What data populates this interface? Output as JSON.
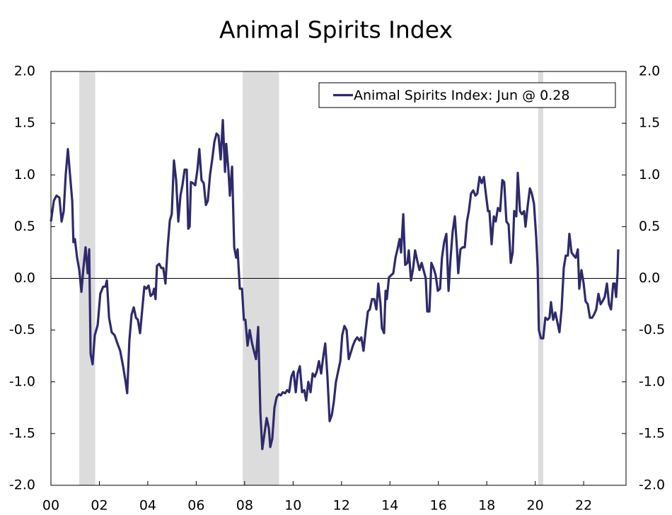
{
  "chart_data": {
    "type": "line",
    "title": "Animal Spirits Index",
    "x": [
      2000.0,
      2000.12,
      2000.23,
      2000.35,
      2000.44,
      2000.53,
      2000.61,
      2000.7,
      2000.79,
      2000.88,
      2000.93,
      2000.99,
      2001.08,
      2001.17,
      2001.26,
      2001.34,
      2001.43,
      2001.52,
      2001.58,
      2001.64,
      2001.72,
      2001.81,
      2001.93,
      2002.04,
      2002.16,
      2002.25,
      2002.31,
      2002.4,
      2002.51,
      2002.63,
      2002.75,
      2002.86,
      2002.98,
      2003.07,
      2003.15,
      2003.24,
      2003.33,
      2003.42,
      2003.51,
      2003.59,
      2003.68,
      2003.77,
      2003.86,
      2003.94,
      2004.03,
      2004.12,
      2004.21,
      2004.26,
      2004.32,
      2004.38,
      2004.47,
      2004.56,
      2004.64,
      2004.73,
      2004.82,
      2004.91,
      2004.99,
      2005.08,
      2005.17,
      2005.26,
      2005.35,
      2005.43,
      2005.52,
      2005.61,
      2005.67,
      2005.73,
      2005.78,
      2005.87,
      2005.96,
      2006.05,
      2006.13,
      2006.22,
      2006.31,
      2006.4,
      2006.48,
      2006.57,
      2006.66,
      2006.75,
      2006.84,
      2006.92,
      2007.01,
      2007.1,
      2007.19,
      2007.24,
      2007.33,
      2007.39,
      2007.48,
      2007.57,
      2007.65,
      2007.71,
      2007.8,
      2007.89,
      2007.97,
      2008.03,
      2008.12,
      2008.21,
      2008.3,
      2008.38,
      2008.47,
      2008.56,
      2008.65,
      2008.73,
      2008.82,
      2008.91,
      2009.0,
      2009.06,
      2009.14,
      2009.23,
      2009.32,
      2009.41,
      2009.49,
      2009.58,
      2009.67,
      2009.76,
      2009.84,
      2009.93,
      2010.02,
      2010.11,
      2010.19,
      2010.28,
      2010.37,
      2010.46,
      2010.54,
      2010.63,
      2010.72,
      2010.81,
      2010.9,
      2010.98,
      2011.07,
      2011.16,
      2011.25,
      2011.33,
      2011.42,
      2011.51,
      2011.6,
      2011.68,
      2011.77,
      2011.86,
      2011.95,
      2012.03,
      2012.12,
      2012.21,
      2012.3,
      2012.38,
      2012.47,
      2012.56,
      2012.65,
      2012.74,
      2012.82,
      2012.91,
      2013.0,
      2013.09,
      2013.17,
      2013.26,
      2013.35,
      2013.44,
      2013.52,
      2013.61,
      2013.67,
      2013.76,
      2013.82,
      2013.87,
      2013.96,
      2014.05,
      2014.14,
      2014.23,
      2014.31,
      2014.4,
      2014.46,
      2014.55,
      2014.63,
      2014.72,
      2014.78,
      2014.87,
      2014.96,
      2015.04,
      2015.13,
      2015.22,
      2015.31,
      2015.39,
      2015.48,
      2015.54,
      2015.63,
      2015.71,
      2015.8,
      2015.89,
      2015.98,
      2016.07,
      2016.15,
      2016.24,
      2016.33,
      2016.42,
      2016.5,
      2016.59,
      2016.68,
      2016.77,
      2016.82,
      2016.91,
      2017.0,
      2017.09,
      2017.18,
      2017.26,
      2017.35,
      2017.44,
      2017.53,
      2017.61,
      2017.7,
      2017.79,
      2017.88,
      2017.96,
      2018.05,
      2018.11,
      2018.2,
      2018.29,
      2018.37,
      2018.46,
      2018.55,
      2018.64,
      2018.72,
      2018.81,
      2018.9,
      2018.99,
      2019.07,
      2019.13,
      2019.22,
      2019.28,
      2019.37,
      2019.45,
      2019.54,
      2019.6,
      2019.69,
      2019.78,
      2019.86,
      2019.95,
      2020.04,
      2020.1,
      2020.15,
      2020.24,
      2020.33,
      2020.42,
      2020.51,
      2020.59,
      2020.65,
      2020.74,
      2020.83,
      2020.91,
      2021.0,
      2021.09,
      2021.18,
      2021.26,
      2021.35,
      2021.41,
      2021.5,
      2021.59,
      2021.67,
      2021.76,
      2021.82,
      2021.91,
      2022.0,
      2022.08,
      2022.17,
      2022.26,
      2022.35,
      2022.43,
      2022.52,
      2022.61,
      2022.7,
      2022.78,
      2022.87,
      2022.96,
      2023.05,
      2023.13,
      2023.22,
      2023.28,
      2023.34,
      2023.4,
      2023.43
    ],
    "series": [
      {
        "name": "Animal Spirits Index: Jun @ 0.28",
        "color": "#2e2a6b",
        "values": [
          0.55,
          0.75,
          0.8,
          0.78,
          0.55,
          0.65,
          1.0,
          1.25,
          1.0,
          0.75,
          0.35,
          0.38,
          0.2,
          0.08,
          -0.13,
          0.1,
          0.3,
          0.05,
          0.28,
          -0.73,
          -0.83,
          -0.55,
          -0.45,
          -0.15,
          -0.08,
          -0.08,
          -0.02,
          -0.38,
          -0.52,
          -0.55,
          -0.63,
          -0.7,
          -0.85,
          -0.98,
          -1.11,
          -0.6,
          -0.35,
          -0.28,
          -0.38,
          -0.4,
          -0.53,
          -0.3,
          -0.08,
          -0.1,
          -0.07,
          -0.17,
          -0.15,
          -0.1,
          -0.2,
          0.12,
          0.14,
          0.1,
          0.1,
          -0.05,
          0.3,
          0.56,
          0.62,
          1.14,
          0.95,
          0.55,
          0.8,
          0.9,
          1.05,
          1.05,
          0.48,
          0.5,
          0.93,
          0.92,
          0.9,
          1.05,
          1.25,
          0.95,
          0.92,
          0.71,
          0.75,
          1.0,
          1.15,
          1.32,
          1.4,
          1.38,
          1.15,
          1.53,
          1.03,
          1.3,
          1.05,
          0.8,
          1.08,
          0.3,
          0.2,
          0.28,
          -0.1,
          -0.1,
          -0.4,
          -0.4,
          -0.65,
          -0.5,
          -0.62,
          -0.7,
          -0.78,
          -0.47,
          -1.3,
          -1.65,
          -1.5,
          -1.35,
          -1.45,
          -1.63,
          -1.55,
          -1.25,
          -1.15,
          -1.12,
          -1.13,
          -1.1,
          -1.11,
          -1.08,
          -1.1,
          -0.95,
          -0.9,
          -1.1,
          -0.92,
          -0.85,
          -1.1,
          -1.08,
          -1.18,
          -1.0,
          -1.1,
          -0.92,
          -0.95,
          -0.9,
          -0.8,
          -0.92,
          -0.75,
          -0.63,
          -0.95,
          -1.38,
          -1.32,
          -1.2,
          -1.0,
          -0.9,
          -0.8,
          -0.55,
          -0.46,
          -0.5,
          -0.78,
          -0.72,
          -0.65,
          -0.6,
          -0.57,
          -0.6,
          -0.57,
          -0.7,
          -0.5,
          -0.32,
          -0.3,
          -0.2,
          -0.2,
          -0.3,
          -0.05,
          -0.25,
          -0.48,
          -0.53,
          -0.12,
          -0.2,
          0.01,
          0.03,
          0.05,
          0.2,
          0.28,
          0.38,
          0.25,
          0.62,
          0.13,
          0.15,
          0.27,
          -0.02,
          0.1,
          0.27,
          0.17,
          0.08,
          0.15,
          0.08,
          0,
          -0.32,
          -0.32,
          0.15,
          0.1,
          0.03,
          -0.12,
          -0.1,
          0.2,
          0.35,
          0.43,
          -0.12,
          0.18,
          0.45,
          0.6,
          0.28,
          0.05,
          0.28,
          0.3,
          0.3,
          0.55,
          0.65,
          0.82,
          0.85,
          0.8,
          0.82,
          0.98,
          0.92,
          0.98,
          0.82,
          0.65,
          0.65,
          0.33,
          0.6,
          0.55,
          0.68,
          0.65,
          0.95,
          0.93,
          0.55,
          0.52,
          0.15,
          0.25,
          0.65,
          0.6,
          1.02,
          0.65,
          0.62,
          0.65,
          0.5,
          0.7,
          0.87,
          0.82,
          0.72,
          0.4,
          0.1,
          -0.5,
          -0.58,
          -0.58,
          -0.38,
          -0.4,
          -0.38,
          -0.23,
          -0.4,
          -0.33,
          -0.42,
          -0.52,
          -0.3,
          0.1,
          0.22,
          0.22,
          0.43,
          0.25,
          0.22,
          0.2,
          0.28,
          -0.1,
          0.08,
          -0.05,
          -0.22,
          -0.25,
          -0.38,
          -0.38,
          -0.35,
          -0.3,
          -0.15,
          -0.25,
          -0.22,
          -0.18,
          -0.05,
          -0.25,
          -0.3,
          -0.05,
          -0.05,
          -0.18,
          0.05,
          0.28
        ]
      }
    ],
    "recessions": [
      [
        2001.17,
        2001.83
      ],
      [
        2007.92,
        2009.42
      ],
      [
        2020.12,
        2020.33
      ]
    ],
    "recession_color": "#dcdcdc",
    "xlim": [
      2000,
      2023.75
    ],
    "xticks": [
      {
        "value": 2000,
        "label": "00"
      },
      {
        "value": 2002,
        "label": "02"
      },
      {
        "value": 2004,
        "label": "04"
      },
      {
        "value": 2006,
        "label": "06"
      },
      {
        "value": 2008,
        "label": "08"
      },
      {
        "value": 2010,
        "label": "10"
      },
      {
        "value": 2012,
        "label": "12"
      },
      {
        "value": 2014,
        "label": "14"
      },
      {
        "value": 2016,
        "label": "16"
      },
      {
        "value": 2018,
        "label": "18"
      },
      {
        "value": 2020,
        "label": "20"
      },
      {
        "value": 2022,
        "label": "22"
      }
    ],
    "ylim": [
      -2,
      2
    ],
    "yticks": [
      {
        "value": -2,
        "label": "-2.0"
      },
      -1.5,
      {
        "value": -1,
        "label": "-1.0"
      },
      -0.5,
      {
        "value": 0,
        "label": "0.0"
      },
      0.5,
      {
        "value": 1,
        "label": "1.0"
      },
      1.5,
      {
        "value": 2,
        "label": "2.0"
      }
    ],
    "y2lim": [
      -2,
      2
    ],
    "y2ticks": [
      {
        "value": -2,
        "label": "-2.0"
      },
      -1.5,
      {
        "value": -1,
        "label": "-1.0"
      },
      -0.5,
      {
        "value": 0,
        "label": "0.0"
      },
      0.5,
      {
        "value": 1,
        "label": "1.0"
      },
      1.5,
      {
        "value": 2,
        "label": "2.0"
      }
    ],
    "legend": "top-right"
  }
}
